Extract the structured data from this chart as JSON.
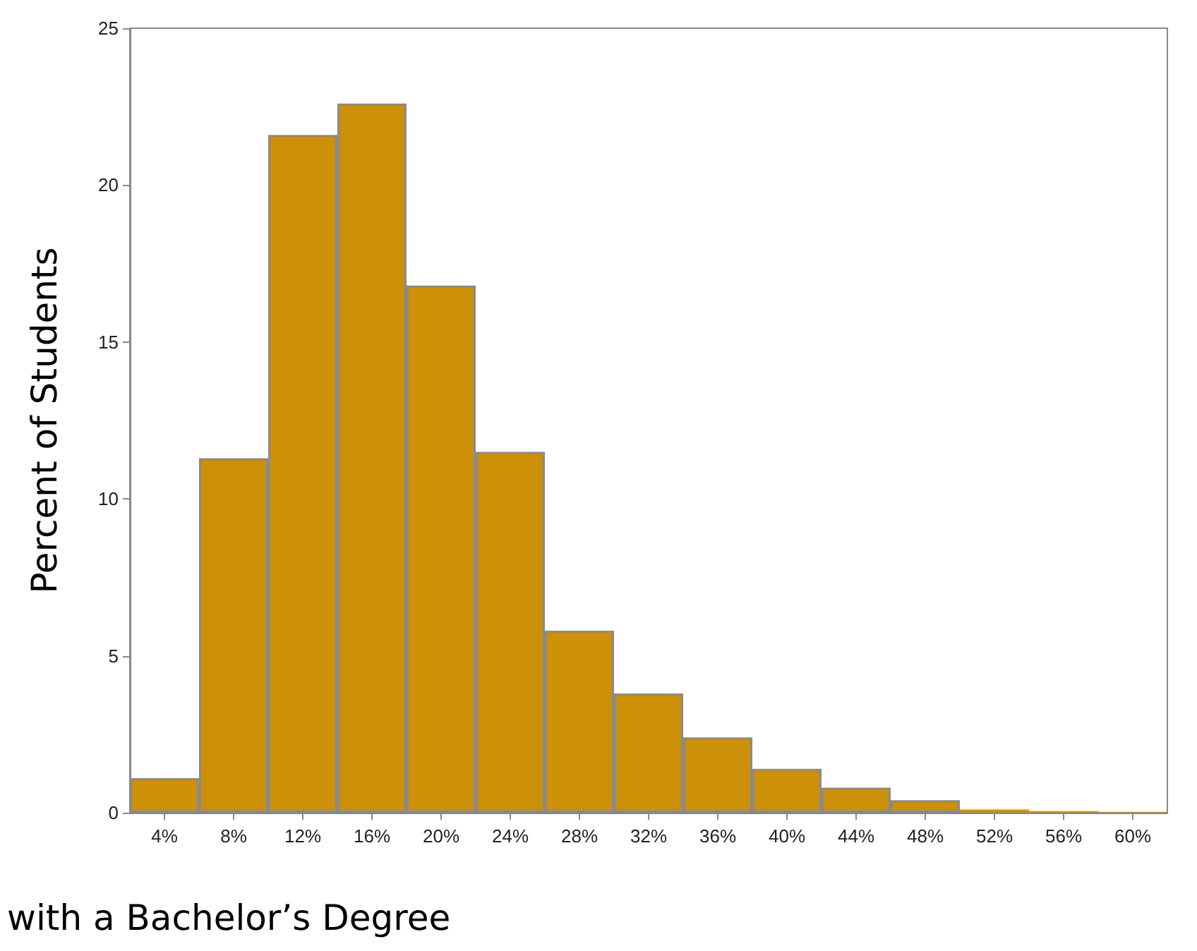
{
  "chart_data": {
    "type": "bar",
    "xlabel": "with a Bachelor’s Degree",
    "ylabel": "Percent of Students",
    "categories": [
      "4%",
      "8%",
      "12%",
      "16%",
      "20%",
      "24%",
      "28%",
      "32%",
      "36%",
      "40%",
      "44%",
      "48%",
      "52%",
      "56%",
      "60%"
    ],
    "values": [
      1.1,
      11.3,
      21.6,
      22.6,
      16.8,
      11.5,
      5.8,
      3.8,
      2.4,
      1.4,
      0.8,
      0.4,
      0.1,
      0.05,
      0.03
    ],
    "color": "#cc9009",
    "ylim": [
      0,
      25
    ],
    "yticks": [
      0,
      5,
      10,
      15,
      20,
      25
    ],
    "grid": false
  }
}
